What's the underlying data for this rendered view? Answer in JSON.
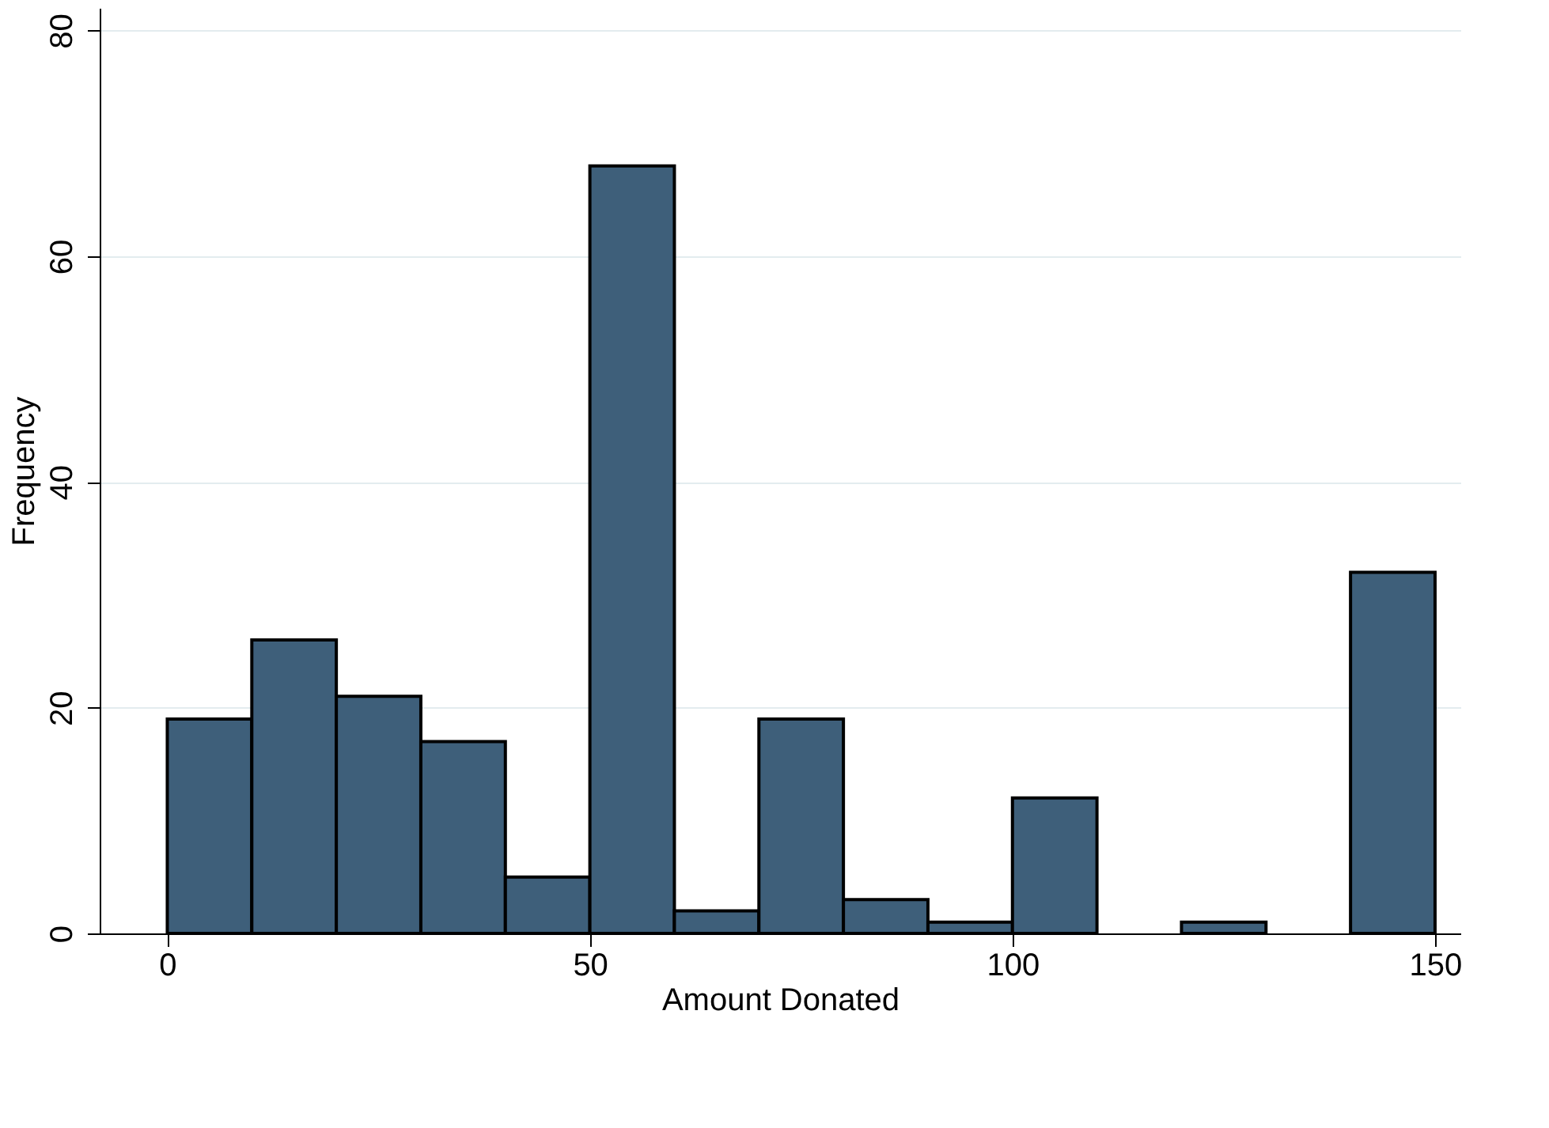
{
  "chart_data": {
    "type": "histogram",
    "xlabel": "Amount Donated",
    "ylabel": "Frequency",
    "bins": [
      0,
      10,
      20,
      30,
      40,
      50,
      60,
      70,
      80,
      90,
      100,
      110,
      120,
      130,
      140,
      150
    ],
    "values": [
      19,
      26,
      21,
      17,
      5,
      68,
      2,
      19,
      3,
      1,
      12,
      0,
      1,
      0,
      32
    ],
    "color": "#3e5f7a",
    "xlim": [
      -8,
      153
    ],
    "xticks": [
      0,
      50,
      100,
      150
    ],
    "ylim": [
      0,
      82
    ],
    "yticks": [
      0,
      20,
      40,
      60,
      80
    ],
    "grid": "y"
  }
}
